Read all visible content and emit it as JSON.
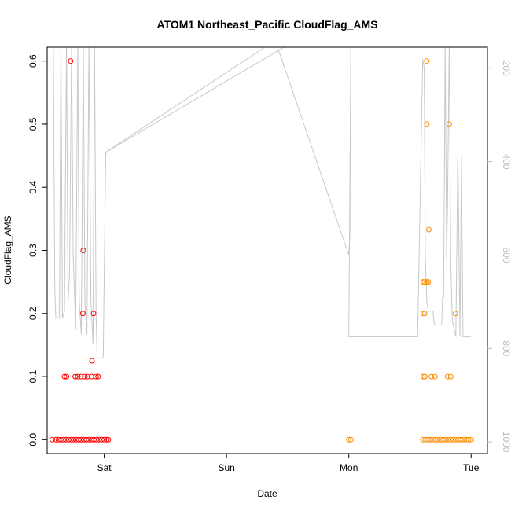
{
  "chart_data": {
    "type": "scatter",
    "title": "ATOM1 Northeast_Pacific CloudFlag_AMS",
    "xlabel": "Date",
    "ylabel": "CloudFlag_AMS",
    "x_ticks": [
      {
        "label": "Sat",
        "t": 24
      },
      {
        "label": "Sun",
        "t": 48
      },
      {
        "label": "Mon",
        "t": 72
      },
      {
        "label": "Tue",
        "t": 96
      }
    ],
    "xlim_hours": [
      12.8,
      99.2
    ],
    "ylim": [
      -0.022,
      0.622
    ],
    "y_ticks": [
      "0.0",
      "0.1",
      "0.2",
      "0.3",
      "0.4",
      "0.5",
      "0.6"
    ],
    "grid": false,
    "legend": "none",
    "secondary_axis": {
      "side": "right",
      "ticks": [
        "200",
        "400",
        "600",
        "800",
        "1000"
      ],
      "color": "#bdbdbd",
      "lim": [
        1025,
        155
      ],
      "reversed": true
    },
    "series": [
      {
        "color": "#ff0000",
        "marker": "open-circle",
        "points": [
          [
            13.8,
            0
          ],
          [
            14.5,
            0
          ],
          [
            15,
            0
          ],
          [
            15.5,
            0
          ],
          [
            16,
            0
          ],
          [
            16.5,
            0
          ],
          [
            17,
            0
          ],
          [
            17.5,
            0
          ],
          [
            18,
            0
          ],
          [
            18.5,
            0
          ],
          [
            19,
            0
          ],
          [
            19.5,
            0
          ],
          [
            20,
            0
          ],
          [
            20.5,
            0
          ],
          [
            21,
            0
          ],
          [
            21.5,
            0
          ],
          [
            22,
            0
          ],
          [
            22.5,
            0
          ],
          [
            23,
            0
          ],
          [
            23.5,
            0
          ],
          [
            24,
            0
          ],
          [
            24.5,
            0
          ],
          [
            24.8,
            0
          ],
          [
            16.2,
            0.1
          ],
          [
            16.6,
            0.1
          ],
          [
            18.3,
            0.1
          ],
          [
            18.8,
            0.1
          ],
          [
            19.4,
            0.1
          ],
          [
            20.2,
            0.1
          ],
          [
            20.7,
            0.1
          ],
          [
            21.5,
            0.1
          ],
          [
            22.4,
            0.1
          ],
          [
            22.8,
            0.1
          ],
          [
            17.4,
            0.6
          ],
          [
            19.9,
            0.3
          ],
          [
            19.8,
            0.2
          ],
          [
            21.9,
            0.2
          ],
          [
            21.6,
            0.125
          ]
        ]
      },
      {
        "color": "#ff8c00",
        "marker": "open-circle",
        "points": [
          [
            72.0,
            0
          ],
          [
            72.4,
            0
          ],
          [
            86.5,
            0
          ],
          [
            87,
            0
          ],
          [
            87.5,
            0
          ],
          [
            88,
            0
          ],
          [
            88.5,
            0
          ],
          [
            89,
            0
          ],
          [
            89.5,
            0
          ],
          [
            90,
            0
          ],
          [
            90.5,
            0
          ],
          [
            91,
            0
          ],
          [
            91.5,
            0
          ],
          [
            92,
            0
          ],
          [
            92.5,
            0
          ],
          [
            93,
            0
          ],
          [
            93.5,
            0
          ],
          [
            94,
            0
          ],
          [
            94.5,
            0
          ],
          [
            95,
            0
          ],
          [
            95.5,
            0
          ],
          [
            96,
            0
          ],
          [
            86.6,
            0.1
          ],
          [
            86.9,
            0.1
          ],
          [
            88.2,
            0.1
          ],
          [
            88.9,
            0.1
          ],
          [
            91.4,
            0.1
          ],
          [
            92.0,
            0.1
          ],
          [
            86.6,
            0.2
          ],
          [
            86.9,
            0.2
          ],
          [
            92.9,
            0.2
          ],
          [
            86.6,
            0.25
          ],
          [
            86.9,
            0.25
          ],
          [
            87.3,
            0.25
          ],
          [
            87.6,
            0.25
          ],
          [
            87.7,
            0.333
          ],
          [
            87.3,
            0.5
          ],
          [
            91.7,
            0.5
          ],
          [
            87.3,
            0.6
          ]
        ]
      }
    ],
    "secondary_series": {
      "color": "#c8c8c8",
      "points": [
        [
          14.0,
          150
        ],
        [
          14.3,
          670
        ],
        [
          14.5,
          735
        ],
        [
          15.2,
          735
        ],
        [
          15.5,
          130
        ],
        [
          15.8,
          735
        ],
        [
          16.2,
          720
        ],
        [
          16.6,
          130
        ],
        [
          16.9,
          700
        ],
        [
          17.2,
          640
        ],
        [
          17.6,
          130
        ],
        [
          17.9,
          600
        ],
        [
          18.4,
          760
        ],
        [
          18.8,
          130
        ],
        [
          19.1,
          700
        ],
        [
          19.5,
          770
        ],
        [
          19.9,
          130
        ],
        [
          20.2,
          700
        ],
        [
          20.6,
          770
        ],
        [
          21.0,
          130
        ],
        [
          21.4,
          700
        ],
        [
          21.8,
          790
        ],
        [
          22.1,
          130
        ],
        [
          22.4,
          720
        ],
        [
          22.6,
          820
        ],
        [
          23.5,
          820
        ],
        [
          23.8,
          820
        ],
        [
          24.3,
          380
        ],
        [
          55.5,
          155
        ],
        [
          58.0,
          155
        ],
        [
          72.0,
          600
        ],
        [
          72.2,
          560
        ],
        [
          72.4,
          130
        ],
        [
          72.0,
          775
        ],
        [
          85.5,
          775
        ],
        [
          86.5,
          180
        ],
        [
          86.8,
          200
        ],
        [
          87.0,
          600
        ],
        [
          87.3,
          700
        ],
        [
          87.6,
          720
        ],
        [
          88.5,
          720
        ],
        [
          88.8,
          750
        ],
        [
          89.6,
          750
        ],
        [
          90.2,
          750
        ],
        [
          90.4,
          690
        ],
        [
          90.6,
          690
        ],
        [
          90.9,
          130
        ],
        [
          91.2,
          610
        ],
        [
          91.4,
          470
        ],
        [
          91.7,
          130
        ],
        [
          92.0,
          610
        ],
        [
          92.3,
          740
        ],
        [
          93.0,
          775
        ],
        [
          93.4,
          375
        ],
        [
          93.8,
          775
        ],
        [
          94.1,
          390
        ],
        [
          94.4,
          775
        ],
        [
          95.9,
          775
        ]
      ]
    }
  }
}
